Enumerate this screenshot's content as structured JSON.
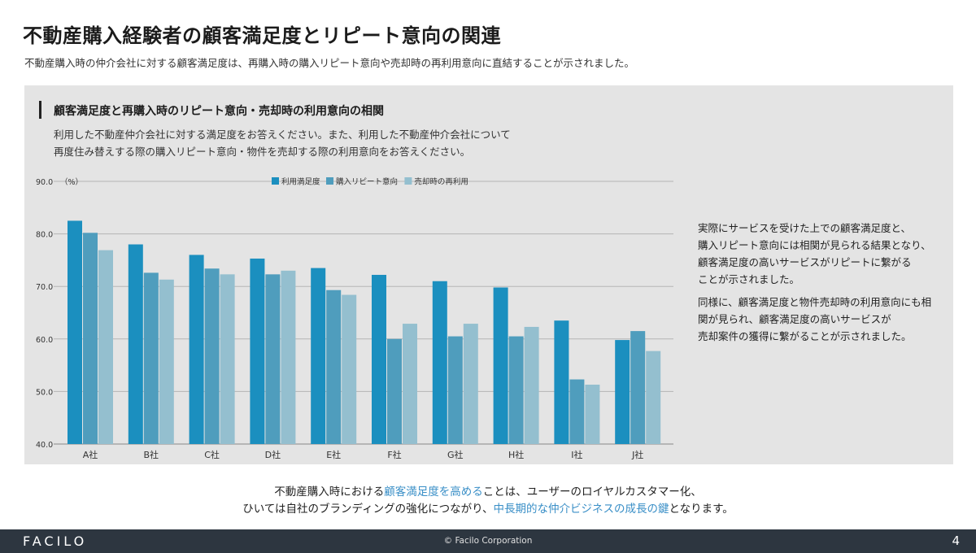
{
  "header": {
    "title": "不動産購入経験者の顧客満足度とリピート意向の関連",
    "subtitle": "不動産購入時の仲介会社に対する顧客満足度は、再購入時の購入リピート意向や売却時の再利用意向に直結することが示されました。"
  },
  "panel": {
    "title": "顧客満足度と再購入時のリピート意向・売却時の利用意向の相関",
    "desc_line1": "利用した不動産仲介会社に対する満足度をお答えください。また、利用した不動産仲介会社について",
    "desc_line2": "再度住み替えする際の購入リピート意向・物件を売却する際の利用意向をお答えください。"
  },
  "notes": {
    "p1_l1": "実際にサービスを受けた上での顧客満足度と、",
    "p1_l2": "購入リピート意向には相関が見られる結果となり、",
    "p1_l3": "顧客満足度の高いサービスがリピートに繋がる",
    "p1_l4": "ことが示されました。",
    "p2_l1": "同様に、顧客満足度と物件売却時の利用意向にも相",
    "p2_l2": "関が見られ、顧客満足度の高いサービスが",
    "p2_l3": "売却案件の獲得に繋がることが示されました。"
  },
  "bottom": {
    "l1_a": "不動産購入時における",
    "l1_b": "顧客満足度を高める",
    "l1_c": "ことは、ユーザーのロイヤルカスタマー化、",
    "l2_a": "ひいては自社のブランディングの強化につながり、",
    "l2_b": "中長期的な仲介ビジネスの成長の鍵",
    "l2_c": "となります。"
  },
  "footer": {
    "logo": "FACILO",
    "copyright": "© Facilo Corporation",
    "page": "4"
  },
  "chart_data": {
    "type": "bar",
    "title": "",
    "ylabel": "（%）",
    "xlabel": "",
    "ylim": [
      40,
      90
    ],
    "yticks": [
      "40.0",
      "50.0",
      "60.0",
      "70.0",
      "80.0",
      "90.0"
    ],
    "categories": [
      "A社",
      "B社",
      "C社",
      "D社",
      "E社",
      "F社",
      "G社",
      "H社",
      "I社",
      "J社"
    ],
    "series": [
      {
        "name": "利用満足度",
        "color": "#1b8fbf",
        "values": [
          82.5,
          78.0,
          76.0,
          75.3,
          73.5,
          72.2,
          71.0,
          69.8,
          63.5,
          59.8
        ]
      },
      {
        "name": "購入リピート意向",
        "color": "#4f9dbd",
        "values": [
          80.2,
          72.6,
          73.4,
          72.3,
          69.3,
          60.0,
          60.5,
          60.5,
          52.3,
          61.5
        ]
      },
      {
        "name": "売却時の再利用",
        "color": "#94bfcf",
        "values": [
          76.9,
          71.3,
          72.3,
          73.0,
          68.4,
          62.9,
          62.9,
          62.3,
          51.3,
          57.7
        ]
      }
    ]
  }
}
